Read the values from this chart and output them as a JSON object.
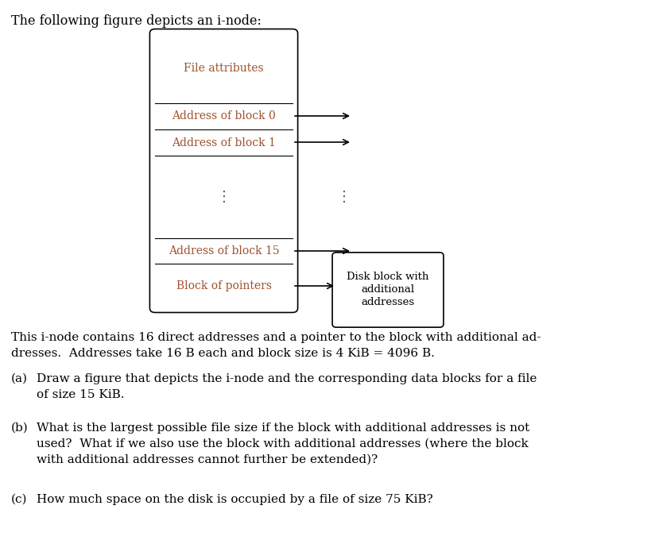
{
  "title_text": "The following figure depicts an i-node:",
  "title_color": "#000000",
  "label_color": "#A0522D",
  "box_edge_color": "#000000",
  "file_attr_text": "File attributes",
  "addr_block0": "Address of block 0",
  "addr_block1": "Address of block 1",
  "addr_block15": "Address of block 15",
  "block_ptrs": "Block of pointers",
  "disk_block_line1": "Disk block with",
  "disk_block_line2": "additional",
  "disk_block_line3": "addresses",
  "paragraph1_line1": "This i-node contains 16 direct addresses and a pointer to the block with additional ad-",
  "paragraph1_line2": "dresses.  Addresses take 16 B each and block size is 4 KiB = 4096 B.",
  "item_a_prefix": "(a)",
  "item_a_text1": "Draw a figure that depicts the i-node and the corresponding data blocks for a file",
  "item_a_text2": "of size 15 KiB.",
  "item_b_prefix": "(b)",
  "item_b_text1": "What is the largest possible file size if the block with additional addresses is not",
  "item_b_text2": "used?  What if we also use the block with additional addresses (where the block",
  "item_b_text3": "with additional addresses cannot further be extended)?",
  "item_c_prefix": "(c)",
  "item_c_text": "How much space on the disk is occupied by a file of size 75 KiB?"
}
